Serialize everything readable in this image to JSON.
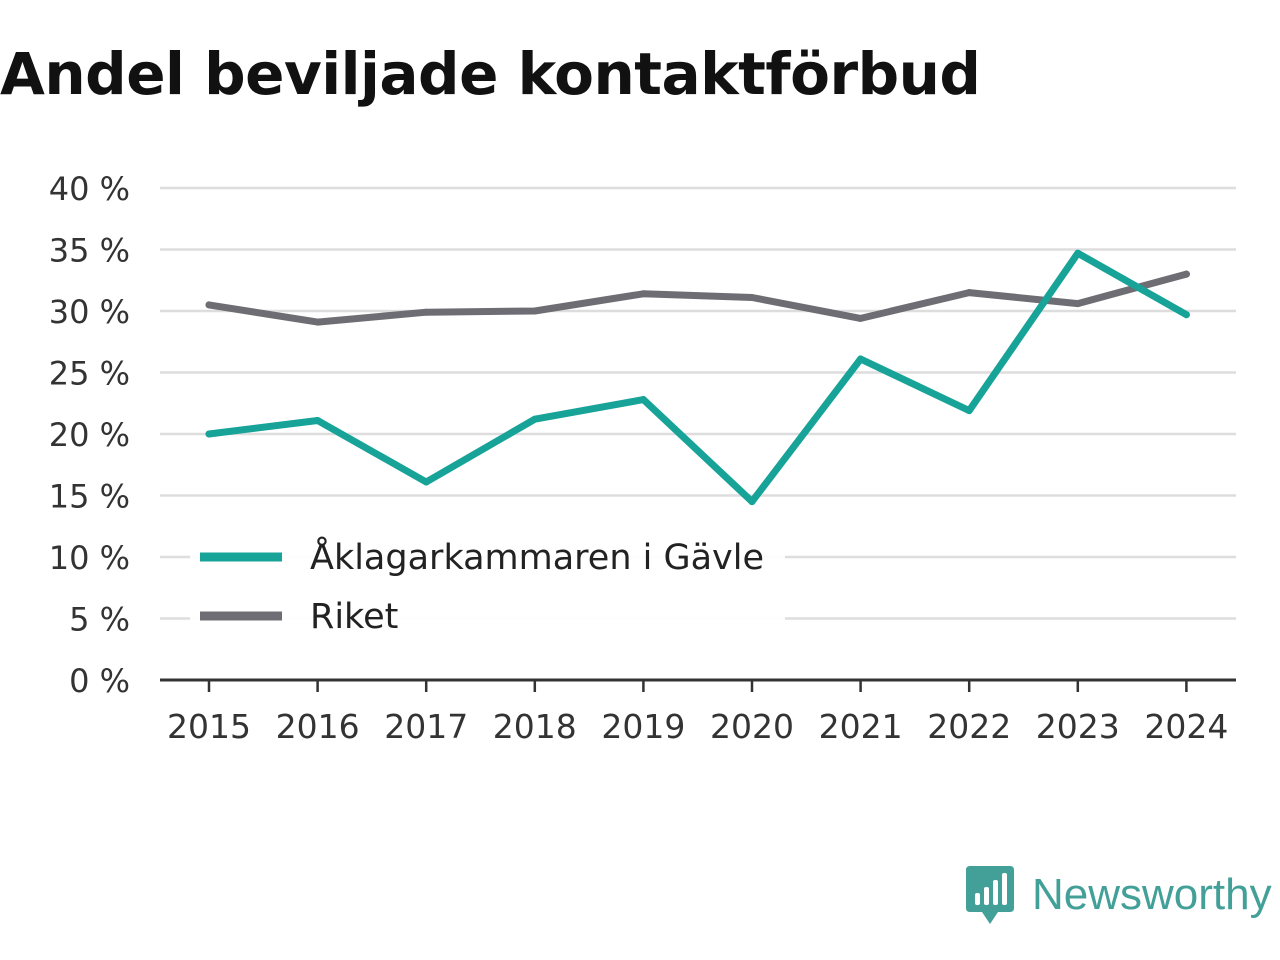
{
  "title": "Andel beviljade kontaktförbud",
  "brand": {
    "name": "Newsworthy",
    "icon": "newsworthy-logo-icon"
  },
  "colors": {
    "accent": "#17a398",
    "secondary": "#6e6d73",
    "grid": "#dddddd",
    "axis": "#333333"
  },
  "chart_data": {
    "type": "line",
    "title": "Andel beviljade kontaktförbud",
    "xlabel": "",
    "ylabel": "",
    "x": [
      "2015",
      "2016",
      "2017",
      "2018",
      "2019",
      "2020",
      "2021",
      "2022",
      "2023",
      "2024"
    ],
    "ylim": [
      0,
      40
    ],
    "yticks": [
      0,
      5,
      10,
      15,
      20,
      25,
      30,
      35,
      40
    ],
    "ytick_labels": [
      "0 %",
      "5 %",
      "10 %",
      "15 %",
      "20 %",
      "25 %",
      "30 %",
      "35 %",
      "40 %"
    ],
    "grid": true,
    "legend_position": "bottom-left",
    "series": [
      {
        "name": "Åklagarkammaren i Gävle",
        "color": "#17a398",
        "values": [
          20.0,
          21.1,
          16.1,
          21.2,
          22.8,
          14.5,
          26.1,
          21.9,
          34.7,
          29.7
        ]
      },
      {
        "name": "Riket",
        "color": "#6e6d73",
        "values": [
          30.5,
          29.1,
          29.9,
          30.0,
          31.4,
          31.1,
          29.4,
          31.5,
          30.6,
          33.0
        ]
      }
    ]
  }
}
